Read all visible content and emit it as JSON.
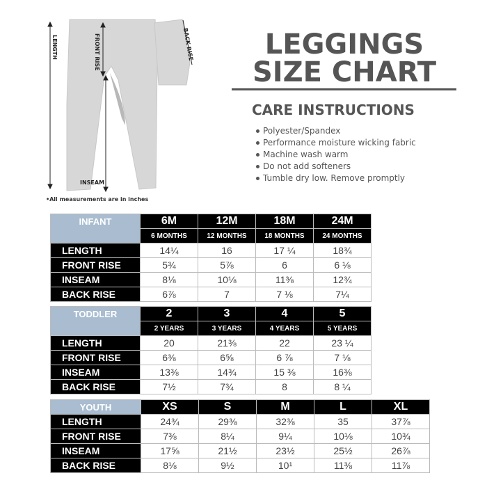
{
  "title": {
    "line1": "LEGGINGS",
    "line2": "SIZE CHART"
  },
  "care": {
    "heading": "CARE INSTRUCTIONS",
    "items": [
      "Polyester/Spandex",
      "Performance moisture wicking fabric",
      "Machine wash warm",
      "Do not add softeners",
      "Tumble dry low. Remove promptly"
    ]
  },
  "diagram": {
    "labels": {
      "length": "LENGTH",
      "front_rise": "FRONT RISE",
      "back_rise": "BACK RISE",
      "inseam": "INSEAM"
    },
    "note": "•All measurements are in inches"
  },
  "colors": {
    "group_header": "#a9bcd0",
    "header_bg": "#000000",
    "text": "#555555"
  },
  "tables": [
    {
      "group": "INFANT",
      "sizes": [
        "6M",
        "12M",
        "18M",
        "24M"
      ],
      "subtitles": [
        "6 MONTHS",
        "12 MONTHS",
        "18 MONTHS",
        "24 MONTHS"
      ],
      "rows": [
        {
          "label": "LENGTH",
          "values": [
            "14¼",
            "16",
            "17 ¼",
            "18¾"
          ]
        },
        {
          "label": "FRONT RISE",
          "values": [
            "5¾",
            "5⅞",
            "6",
            "6 ⅛"
          ]
        },
        {
          "label": "INSEAM",
          "values": [
            "8⅛",
            "10⅛",
            "11⅜",
            "12¾"
          ]
        },
        {
          "label": "BACK RISE",
          "values": [
            "6⅞",
            "7",
            "7 ⅛",
            "7¼"
          ]
        }
      ]
    },
    {
      "group": "TODDLER",
      "sizes": [
        "2",
        "3",
        "4",
        "5"
      ],
      "subtitles": [
        "2 YEARS",
        "3 YEARS",
        "4 YEARS",
        "5 YEARS"
      ],
      "rows": [
        {
          "label": "LENGTH",
          "values": [
            "20",
            "21⅜",
            "22",
            "23 ¼"
          ]
        },
        {
          "label": "FRONT RISE",
          "values": [
            "6⅜",
            "6⅝",
            "6 ⅞",
            "7 ⅛"
          ]
        },
        {
          "label": "INSEAM",
          "values": [
            "13⅜",
            "14¾",
            "15 ⅜",
            "16⅜"
          ]
        },
        {
          "label": "BACK RISE",
          "values": [
            "7½",
            "7¾",
            "8",
            "8 ¼"
          ]
        }
      ]
    },
    {
      "group": "YOUTH",
      "sizes": [
        "XS",
        "S",
        "M",
        "L",
        "XL"
      ],
      "rows": [
        {
          "label": "LENGTH",
          "values": [
            "24¾",
            "29⅜",
            "32⅜",
            "35",
            "37⅞"
          ]
        },
        {
          "label": "FRONT RISE",
          "values": [
            "7⅜",
            "8¼",
            "9¼",
            "10⅛",
            "10¾"
          ]
        },
        {
          "label": "INSEAM",
          "values": [
            "17⅝",
            "21½",
            "23½",
            "25½",
            "26⅞"
          ]
        },
        {
          "label": "BACK RISE",
          "values": [
            "8⅛",
            "9½",
            "10¹",
            "11⅜",
            "11⅞"
          ]
        }
      ]
    }
  ]
}
